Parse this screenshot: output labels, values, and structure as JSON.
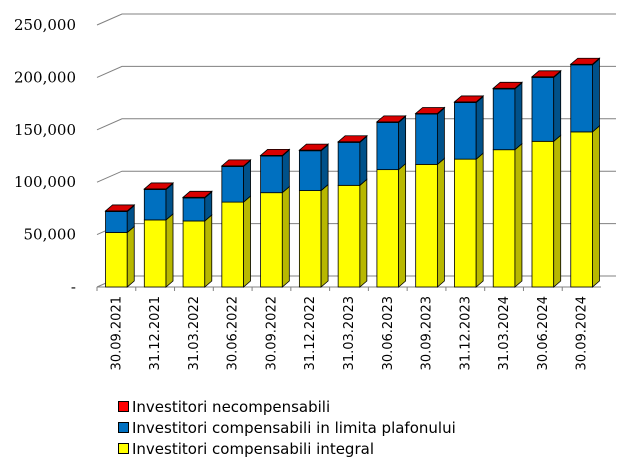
{
  "chart_data": {
    "type": "bar",
    "stacked": true,
    "style": "3d-stacked-column",
    "categories": [
      "30.09.2021",
      "31.12.2021",
      "31.03.2022",
      "30.06.2022",
      "30.09.2022",
      "31.12.2022",
      "31.03.2023",
      "30.06.2023",
      "30.09.2023",
      "31.12.2023",
      "31.03.2024",
      "30.06.2024",
      "30.09.2024"
    ],
    "series": [
      {
        "name": "Investitori compensabili integral",
        "color": "#FFFF00",
        "values": [
          52000,
          64000,
          63000,
          81000,
          90000,
          92000,
          97000,
          112000,
          117000,
          122000,
          131000,
          139000,
          148000
        ]
      },
      {
        "name": "Investitori compensabili in limita plafonului",
        "color": "#0070C0",
        "values": [
          20000,
          29000,
          22000,
          34000,
          35000,
          38000,
          41000,
          45000,
          48000,
          54000,
          58000,
          61000,
          64000
        ]
      },
      {
        "name": "Investitori necompensabili",
        "color": "#FF0000",
        "values": [
          400,
          400,
          400,
          400,
          400,
          400,
          400,
          400,
          400,
          400,
          400,
          400,
          400
        ]
      }
    ],
    "yticks": [
      "-",
      "50,000",
      "100,000",
      "150,000",
      "200,000",
      "250,000"
    ],
    "ylim": [
      0,
      250000
    ],
    "grid": true,
    "legend_position": "bottom"
  }
}
